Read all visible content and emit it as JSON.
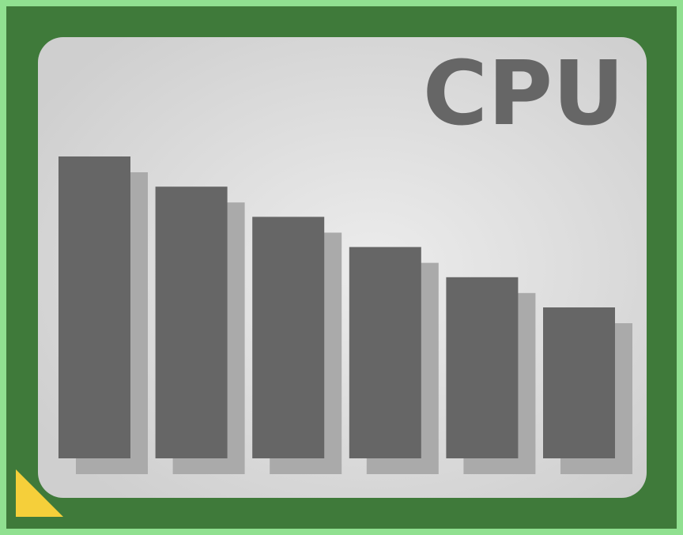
{
  "icon": {
    "label": "CPU",
    "bar_levels": [
      1.0,
      0.9,
      0.8,
      0.7,
      0.6,
      0.5
    ],
    "colors": {
      "outer_border": "#90e090",
      "board": "#3f7a3a",
      "panel_center": "#ececec",
      "panel_edge": "#cfcfcf",
      "bar": "#666666",
      "bar_shadow": "#aaaaaa",
      "text": "#666666",
      "corner_marker": "#f5cf3a"
    }
  }
}
